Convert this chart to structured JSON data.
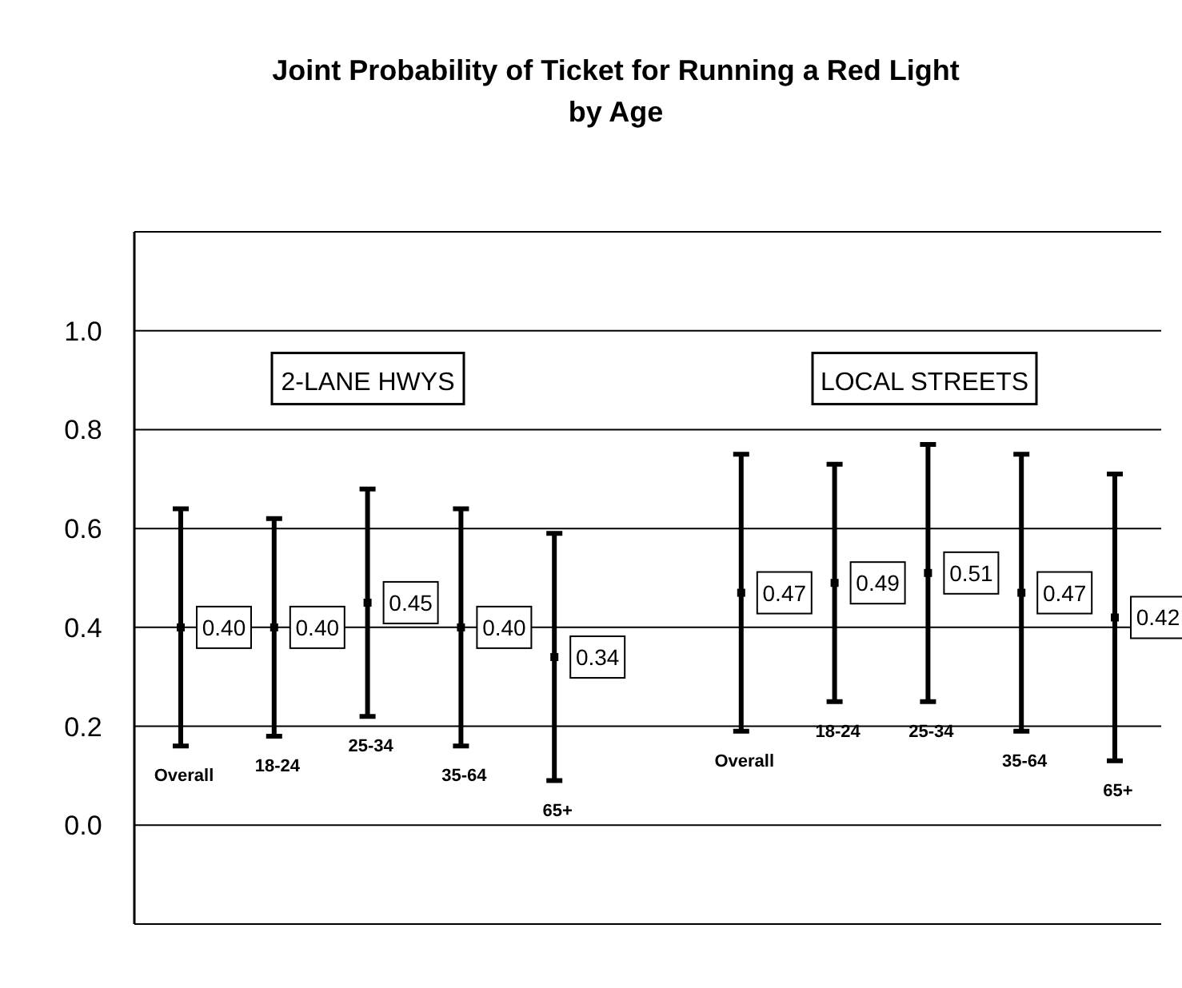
{
  "chart_data": {
    "type": "scatter",
    "title": "Joint Probability of Ticket for Running a Red Light\nby Age",
    "categories": [
      "Overall",
      "18-24",
      "25-34",
      "35-64",
      "65+",
      null,
      "Overall",
      "18-24",
      "25-34",
      "35-64",
      "65+"
    ],
    "series": [
      {
        "color": "#000000",
        "values": [
          0.4,
          0.4,
          0.45,
          0.4,
          0.34,
          null,
          0.47,
          0.49,
          0.51,
          0.47,
          0.42
        ],
        "value_labels": [
          "0.40",
          "0.40",
          "0.45",
          "0.40",
          "0.34",
          null,
          "0.47",
          "0.49",
          "0.51",
          "0.47",
          "0.42"
        ],
        "errors": [
          [
            0.16,
            0.64
          ],
          [
            0.18,
            0.62
          ],
          [
            0.22,
            0.68
          ],
          [
            0.16,
            0.64
          ],
          [
            0.09,
            0.59
          ],
          null,
          [
            0.19,
            0.75
          ],
          [
            0.25,
            0.73
          ],
          [
            0.25,
            0.77
          ],
          [
            0.19,
            0.75
          ],
          [
            0.13,
            0.71
          ]
        ]
      }
    ],
    "ylim": [
      -0.2,
      1.2
    ],
    "yticks": [
      {
        "value": -0.2,
        "label": null
      },
      {
        "value": 0,
        "label": "0.0"
      },
      {
        "value": 0.2,
        "label": "0.2"
      },
      {
        "value": 0.4,
        "label": "0.4"
      },
      {
        "value": 0.6,
        "label": "0.6"
      },
      {
        "value": 0.8,
        "label": "0.8"
      },
      {
        "value": 1,
        "label": "1.0"
      },
      {
        "value": 1.2,
        "label": null
      }
    ],
    "grid": "y",
    "marker": "square",
    "annotations": [
      "2-LANE HWYS",
      "LOCAL STREETS"
    ]
  }
}
